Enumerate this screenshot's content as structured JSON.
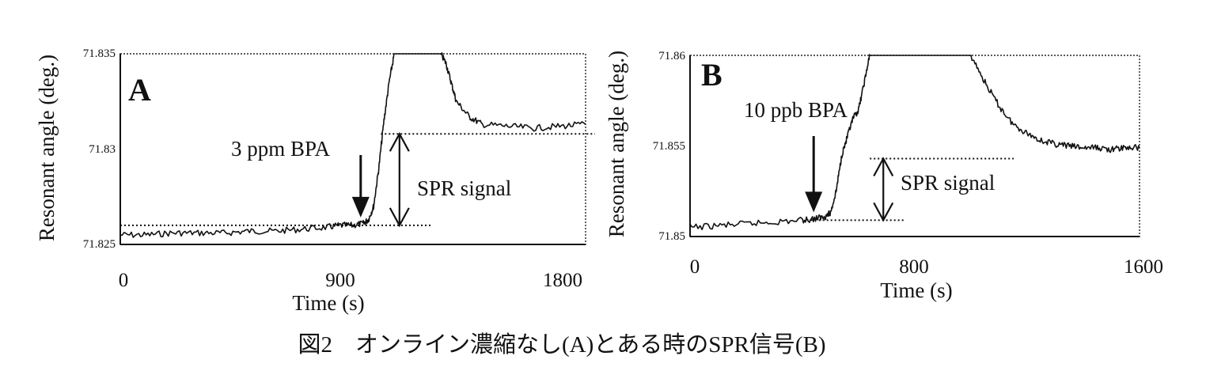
{
  "caption": "図2　オンライン濃縮なし(A)とある時のSPR信号(B)",
  "chart_data": [
    {
      "type": "line",
      "panel": "A",
      "xlabel": "Time (s)",
      "ylabel": "Resonant angle (deg.)",
      "xlim": [
        0,
        1800
      ],
      "ylim": [
        71.825,
        71.835
      ],
      "xticks": [
        "0",
        "900",
        "1800"
      ],
      "yticks": [
        "71.825",
        "71.83",
        "71.835"
      ],
      "series": [
        {
          "x": [
            0,
            100,
            200,
            300,
            400,
            500,
            600,
            700,
            800,
            850,
            900,
            940,
            960,
            980,
            1000,
            1020,
            1040,
            1060,
            1080,
            1100,
            1120,
            1140,
            1160,
            1180,
            1200,
            1220,
            1240,
            1260,
            1280,
            1300,
            1350,
            1400,
            1500,
            1600,
            1700,
            1800
          ],
          "y": [
            71.8255,
            71.8255,
            71.8256,
            71.8256,
            71.8256,
            71.8257,
            71.8257,
            71.8258,
            71.8259,
            71.826,
            71.826,
            71.8261,
            71.8263,
            71.827,
            71.829,
            71.8315,
            71.8335,
            71.835,
            71.835,
            71.835,
            71.835,
            71.835,
            71.835,
            71.835,
            71.835,
            71.835,
            71.835,
            71.8345,
            71.8335,
            71.8325,
            71.8317,
            71.8313,
            71.8312,
            71.8311,
            71.8312,
            71.8313
          ]
        }
      ],
      "annotations": {
        "arrow_label": "3 ppm BPA",
        "arrow_time": 930,
        "signal_label": "SPR signal",
        "baseline": 71.826,
        "plateau": 71.8308
      }
    },
    {
      "type": "line",
      "panel": "B",
      "xlabel": "Time (s)",
      "ylabel": "Resonant angle (deg.)",
      "xlim": [
        0,
        1600
      ],
      "ylim": [
        71.85,
        71.86
      ],
      "xticks": [
        "0",
        "800",
        "1600"
      ],
      "yticks": [
        "71.85",
        "71.855",
        "71.86"
      ],
      "series": [
        {
          "x": [
            0,
            100,
            200,
            300,
            400,
            450,
            480,
            500,
            520,
            540,
            560,
            580,
            600,
            620,
            640,
            660,
            700,
            800,
            900,
            1000,
            1050,
            1100,
            1150,
            1200,
            1250,
            1300,
            1350,
            1400,
            1450,
            1500,
            1550,
            1600
          ],
          "y": [
            71.8505,
            71.8506,
            71.8507,
            71.8508,
            71.8509,
            71.851,
            71.8511,
            71.8513,
            71.8525,
            71.8545,
            71.8555,
            71.8565,
            71.857,
            71.8585,
            71.86,
            71.86,
            71.86,
            71.86,
            71.86,
            71.86,
            71.8585,
            71.8572,
            71.8562,
            71.8557,
            71.8553,
            71.8551,
            71.855,
            71.8549,
            71.8549,
            71.8548,
            71.8549,
            71.8549
          ]
        }
      ],
      "annotations": {
        "arrow_label": "10 ppb BPA",
        "arrow_time": 440,
        "signal_label": "SPR signal",
        "baseline": 71.8509,
        "plateau": 71.8543
      }
    }
  ]
}
